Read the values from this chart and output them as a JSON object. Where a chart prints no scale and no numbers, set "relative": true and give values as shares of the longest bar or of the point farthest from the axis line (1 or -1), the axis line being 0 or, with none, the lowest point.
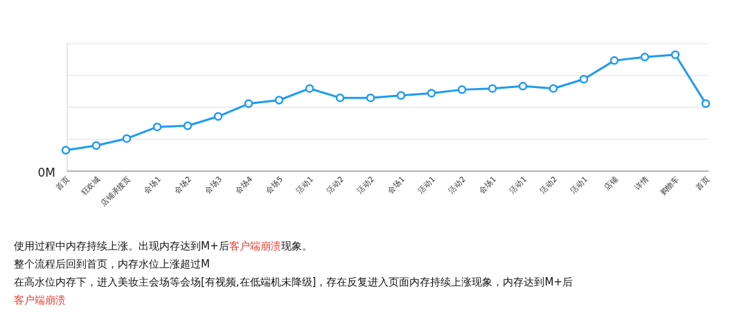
{
  "chart_data": {
    "type": "line",
    "relative": true,
    "categories": [
      "首页",
      "狂欢城",
      "店铺承接页",
      "会场1",
      "会场2",
      "会场3",
      "会场4",
      "会场5",
      "活动1",
      "活动2",
      "活动2",
      "会场1",
      "活动1",
      "活动2",
      "会场1",
      "活动1",
      "活动2",
      "活动1",
      "店铺",
      "详情",
      "购物车",
      "首页"
    ],
    "series": [
      {
        "color": "#1e9bf0",
        "values": [
          0.18,
          0.22,
          0.28,
          0.38,
          0.39,
          0.47,
          0.58,
          0.61,
          0.71,
          0.63,
          0.63,
          0.65,
          0.67,
          0.7,
          0.71,
          0.73,
          0.71,
          0.79,
          0.95,
          0.98,
          1,
          0.58
        ]
      }
    ],
    "marker": "circle",
    "grid": "y",
    "annotations": [
      "0M",
      "使用过程中内存持续上涨。出现内存达到M+后**客户端崩溃**现象。",
      "整个流程后回到首页，内存水位上涨超过M",
      "在高水位内存下，进入美妆主会场等会场[有视频,在低端机未降级]，存在反复进入页面内存持续上涨现象，内存达到M+后",
      "**客户端崩溃**"
    ]
  }
}
